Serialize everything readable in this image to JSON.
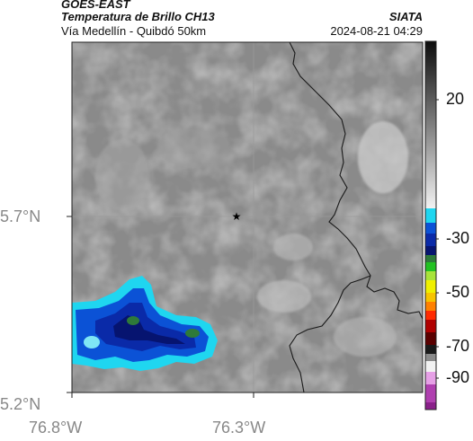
{
  "header": {
    "satellite": "GOES-EAST",
    "product": "Temperatura de Brillo CH13",
    "agency": "SIATA",
    "region": "Vía Medellín - Quibdó 50km",
    "datetime": "2024-08-21 04:29"
  },
  "map": {
    "lat_labels": [
      "5.7°N",
      "5.2°N"
    ],
    "lon_labels": [
      "76.8°W",
      "76.3°W"
    ],
    "marker": "star-marker",
    "colors": {
      "background_gray": "#8c8c8c",
      "cold_cloud_cyan": "#1fd6f0",
      "cold_cloud_blue": "#0a2aa8",
      "cold_cloud_navy": "#061470",
      "cold_cloud_green": "#2e7a3a",
      "border_line": "#1a1a1a"
    }
  },
  "colorbar": {
    "tick_labels": [
      "20",
      "-30",
      "-50",
      "-70",
      "-90"
    ]
  }
}
